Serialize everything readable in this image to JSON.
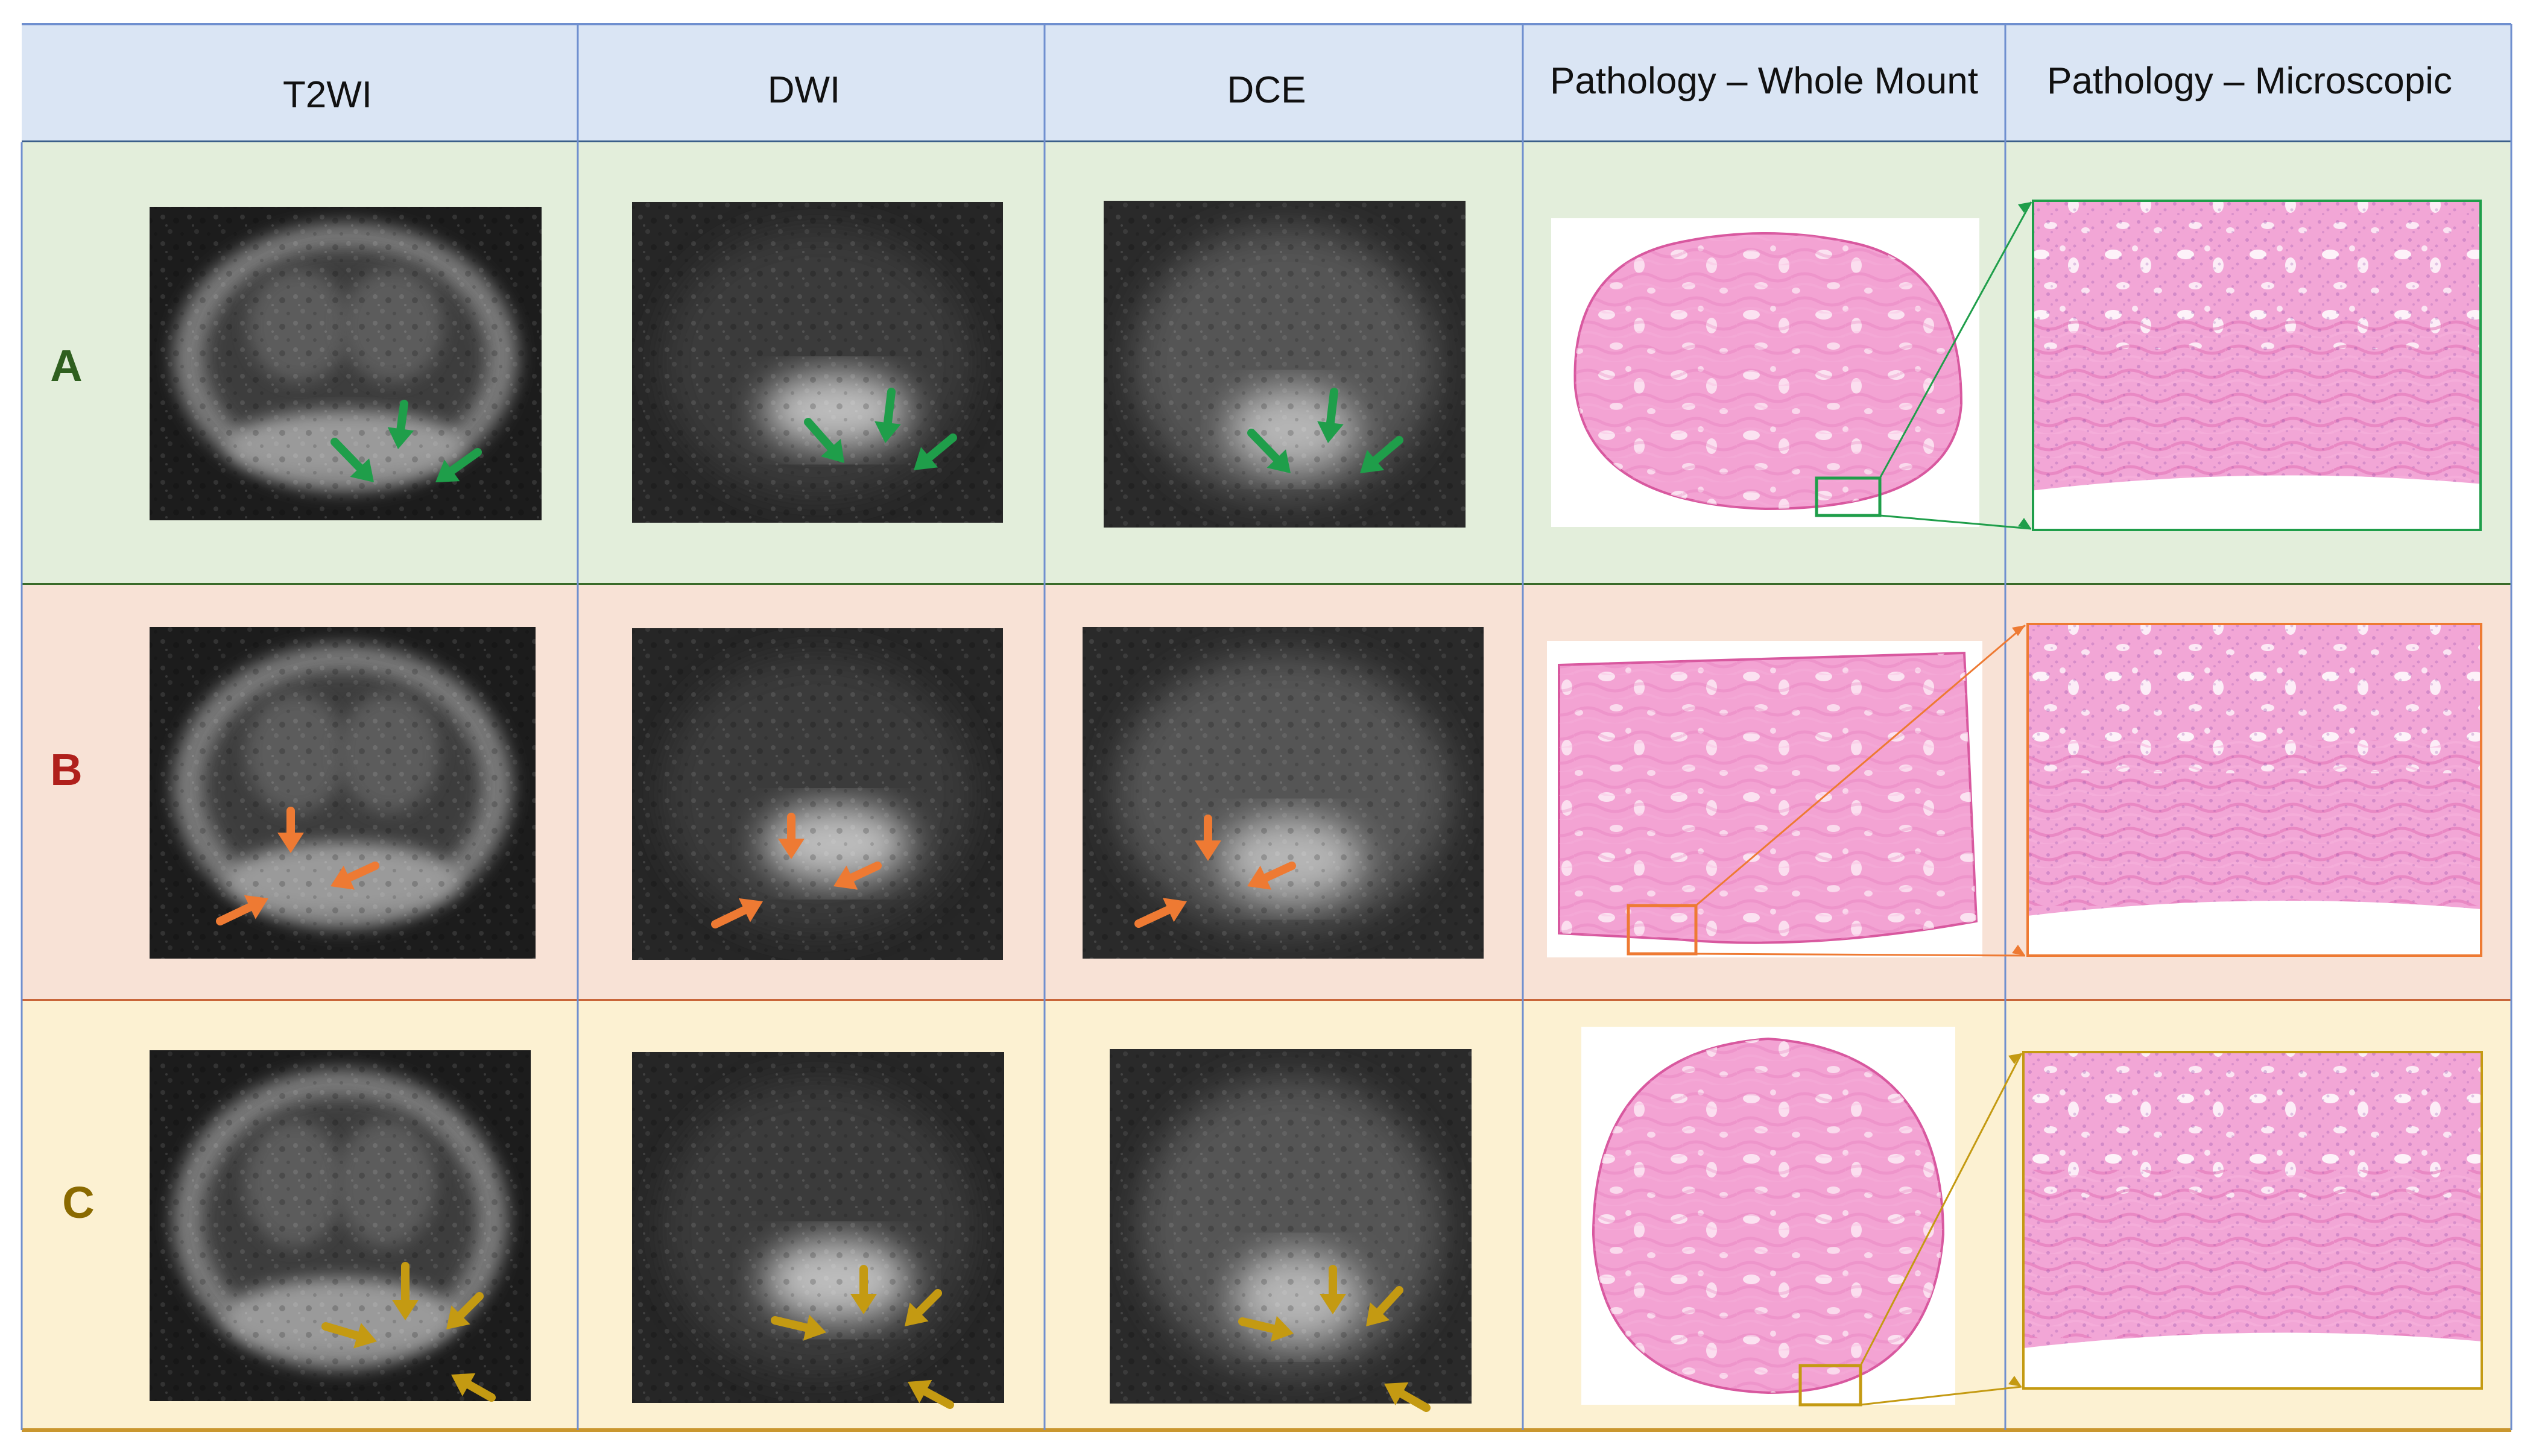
{
  "columns": [
    "T2WI",
    "DWI",
    "DCE",
    "Pathology – Whole Mount",
    "Pathology – Microscopic"
  ],
  "rows": [
    {
      "label": "A",
      "label_color": "#2f5f1f",
      "bg": "#e3eedb",
      "border": "#3a6b2a",
      "arrow_color": "#1f9e4a"
    },
    {
      "label": "B",
      "label_color": "#b0201c",
      "bg": "#f8e2d6",
      "border": "#c9663a",
      "arrow_color": "#ee7a33"
    },
    {
      "label": "C",
      "label_color": "#8a6a00",
      "bg": "#fcf1d2",
      "border": "#c9962e",
      "arrow_color": "#c49a12"
    }
  ],
  "colors": {
    "header_bg": "#dae5f4",
    "grid_line": "#6f8fcf",
    "tissue": "#f08fc8",
    "tissue_dark": "#d8589f"
  }
}
